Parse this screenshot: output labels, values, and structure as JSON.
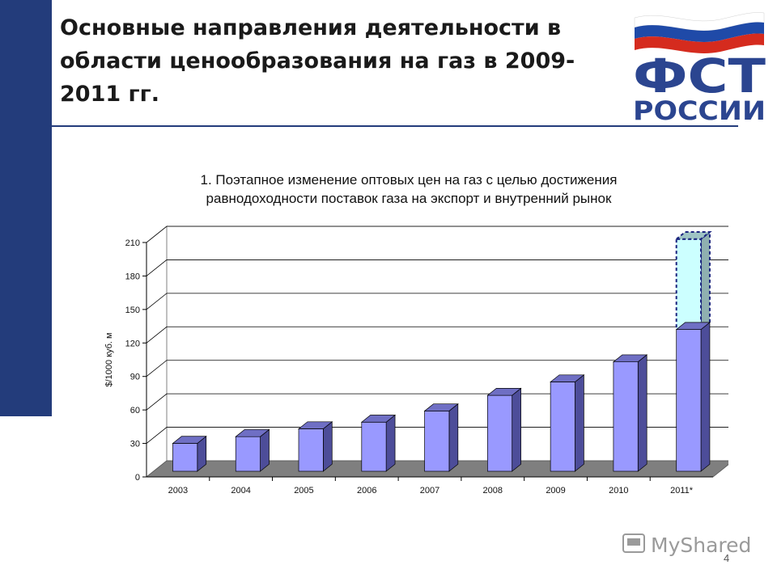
{
  "slide": {
    "title": "Основные направления деятельности в области ценообразования на газ в 2009-2011 гг.",
    "page_number": "4"
  },
  "logo": {
    "text": "ФСТ РОССИИ",
    "flag_colors": [
      "#ffffff",
      "#1f4aa8",
      "#d52b1e"
    ],
    "brand_color": "#2b4590"
  },
  "watermark": {
    "text": "MyShared"
  },
  "colors": {
    "sidebar": "#233c7b",
    "bar_front": "#9999ff",
    "bar_side": "#4d4d99",
    "bar_top": "#6f6fc4",
    "projected_fill": "#ccffff",
    "floor": "#7f7f7f"
  },
  "chart_data": {
    "type": "bar",
    "title_lines": [
      "1. Поэтапное изменение оптовых цен на газ с целью достижения",
      "равнодоходности поставок газа на экспорт и внутренний рынок"
    ],
    "ylabel": "$/1000 куб. м",
    "xlabel": "",
    "ylim": [
      0,
      210
    ],
    "yticks": [
      0,
      30,
      60,
      90,
      120,
      150,
      180,
      210
    ],
    "grid": true,
    "categories": [
      "2003",
      "2004",
      "2005",
      "2006",
      "2007",
      "2008",
      "2009",
      "2010",
      "2011*"
    ],
    "values": [
      25,
      31,
      38,
      44,
      54,
      68,
      80,
      98,
      127
    ],
    "projected": {
      "category": "2011*",
      "from": 127,
      "to": 208
    }
  }
}
